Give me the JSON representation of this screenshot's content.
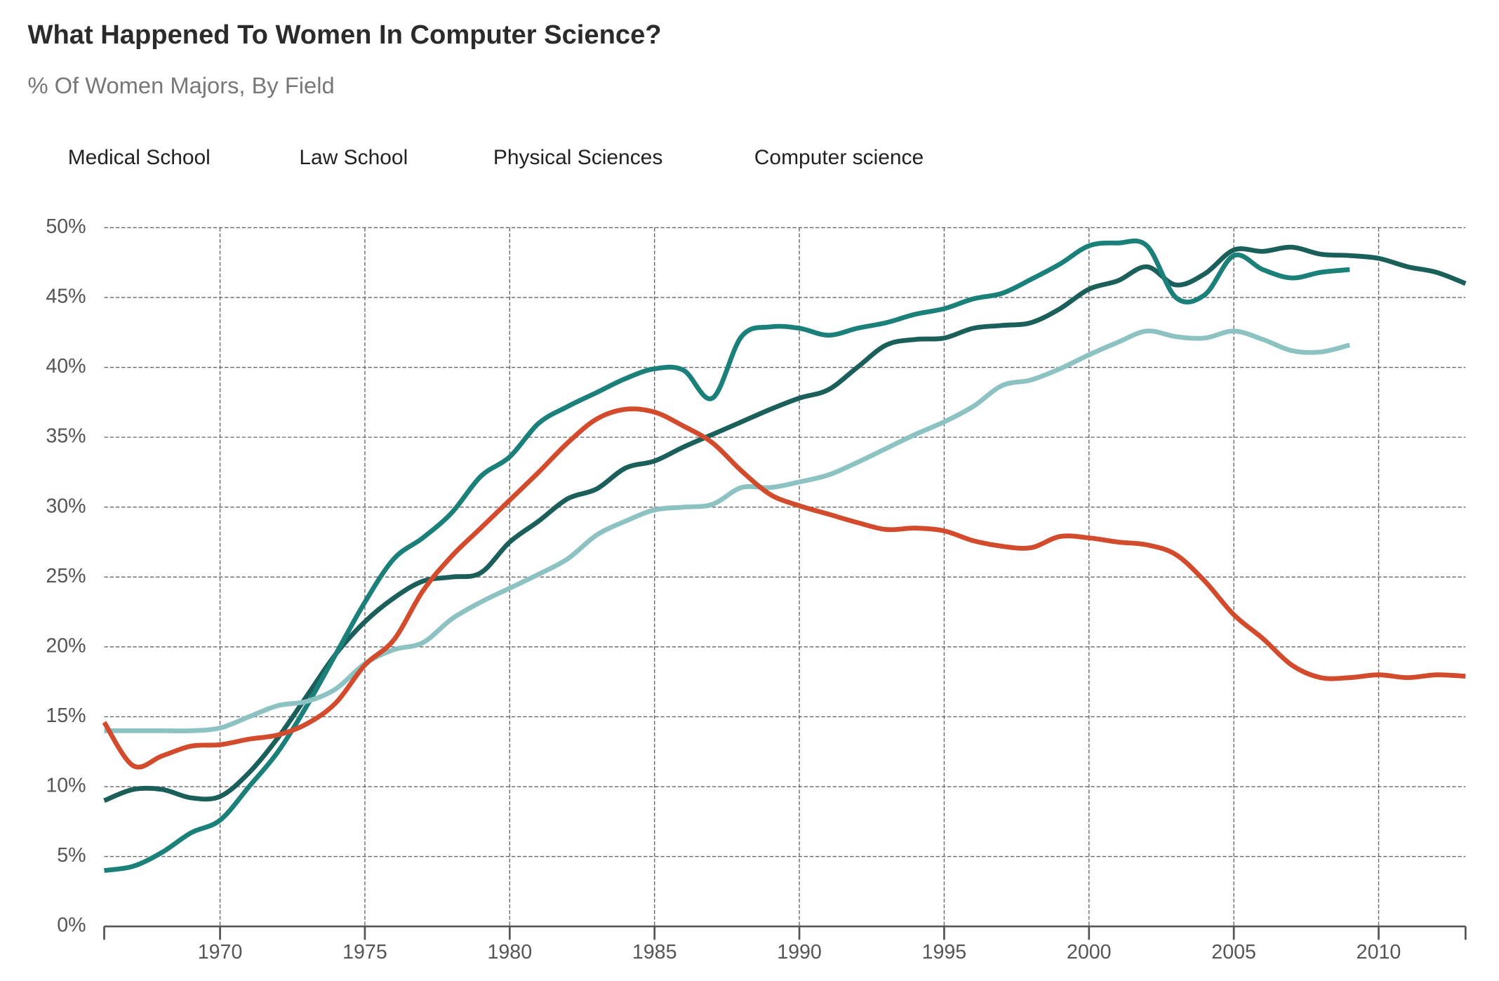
{
  "chart_data": {
    "type": "line",
    "title": "What Happened To Women In Computer Science?",
    "subtitle": "% Of Women Majors, By Field",
    "x": [
      1966,
      1967,
      1968,
      1969,
      1970,
      1971,
      1972,
      1973,
      1974,
      1975,
      1976,
      1977,
      1978,
      1979,
      1980,
      1981,
      1982,
      1983,
      1984,
      1985,
      1986,
      1987,
      1988,
      1989,
      1990,
      1991,
      1992,
      1993,
      1994,
      1995,
      1996,
      1997,
      1998,
      1999,
      2000,
      2001,
      2002,
      2003,
      2004,
      2005,
      2006,
      2007,
      2008,
      2009,
      2010,
      2011,
      2012,
      2013
    ],
    "series": [
      {
        "name": "Medical School",
        "color": "#1b5f5b",
        "values": [
          9.0,
          9.8,
          9.8,
          9.2,
          9.3,
          11.0,
          13.5,
          16.5,
          19.5,
          21.8,
          23.5,
          24.7,
          25.0,
          25.3,
          27.5,
          29.0,
          30.6,
          31.3,
          32.8,
          33.3,
          34.3,
          35.2,
          36.1,
          37.0,
          37.8,
          38.4,
          40.0,
          41.6,
          42.0,
          42.1,
          42.8,
          43.0,
          43.2,
          44.2,
          45.6,
          46.2,
          47.2,
          45.9,
          46.7,
          48.4,
          48.3,
          48.6,
          48.1,
          48.0,
          47.8,
          47.2,
          46.8,
          46.0
        ]
      },
      {
        "name": "Law School",
        "color": "#1b807a",
        "values": [
          4.0,
          4.3,
          5.3,
          6.7,
          7.6,
          10.0,
          12.5,
          15.8,
          19.5,
          23.2,
          26.3,
          27.8,
          29.6,
          32.2,
          33.6,
          36.0,
          37.2,
          38.2,
          39.2,
          39.9,
          39.8,
          37.8,
          42.2,
          42.9,
          42.8,
          42.3,
          42.8,
          43.2,
          43.8,
          44.2,
          44.9,
          45.3,
          46.3,
          47.4,
          48.7,
          48.9,
          48.7,
          45.0,
          45.2,
          48.0,
          47.0,
          46.4,
          46.8,
          47.0,
          null,
          null,
          null,
          null
        ]
      },
      {
        "name": "Physical Sciences",
        "color": "#8cc2c1",
        "values": [
          14.0,
          14.0,
          14.0,
          14.0,
          14.2,
          15.0,
          15.8,
          16.1,
          17.0,
          18.8,
          19.8,
          20.3,
          22.0,
          23.2,
          24.2,
          25.2,
          26.3,
          28.0,
          29.0,
          29.8,
          30.0,
          30.2,
          31.4,
          31.4,
          31.8,
          32.3,
          33.2,
          34.2,
          35.2,
          36.1,
          37.2,
          38.7,
          39.1,
          39.9,
          40.9,
          41.8,
          42.6,
          42.2,
          42.1,
          42.6,
          42.0,
          41.2,
          41.1,
          41.6,
          null,
          null,
          null,
          null
        ]
      },
      {
        "name": "Computer science",
        "color": "#d24b2d",
        "values": [
          14.6,
          11.5,
          12.2,
          12.9,
          13.0,
          13.4,
          13.7,
          14.5,
          16.0,
          18.7,
          20.5,
          24.0,
          26.5,
          28.5,
          30.5,
          32.5,
          34.6,
          36.3,
          37.0,
          36.8,
          35.8,
          34.6,
          32.6,
          30.9,
          30.1,
          29.5,
          28.9,
          28.4,
          28.5,
          28.3,
          27.6,
          27.2,
          27.1,
          27.9,
          27.8,
          27.5,
          27.3,
          26.6,
          24.7,
          22.3,
          20.6,
          18.7,
          17.8,
          17.8,
          18.0,
          17.8,
          18.0,
          17.9
        ]
      }
    ],
    "xlim": [
      1966,
      2013
    ],
    "xticks": [
      1970,
      1975,
      1980,
      1985,
      1990,
      1995,
      2000,
      2005,
      2010
    ],
    "ylim": [
      0,
      50
    ],
    "yticks": [
      {
        "value": 0,
        "label": "0%"
      },
      {
        "value": 5,
        "label": "5%"
      },
      {
        "value": 10,
        "label": "10%"
      },
      {
        "value": 15,
        "label": "15%"
      },
      {
        "value": 20,
        "label": "20%"
      },
      {
        "value": 25,
        "label": "25%"
      },
      {
        "value": 30,
        "label": "30%"
      },
      {
        "value": 35,
        "label": "35%"
      },
      {
        "value": 40,
        "label": "40%"
      },
      {
        "value": 45,
        "label": "45%"
      },
      {
        "value": 50,
        "label": "50%"
      }
    ],
    "grid": true
  }
}
